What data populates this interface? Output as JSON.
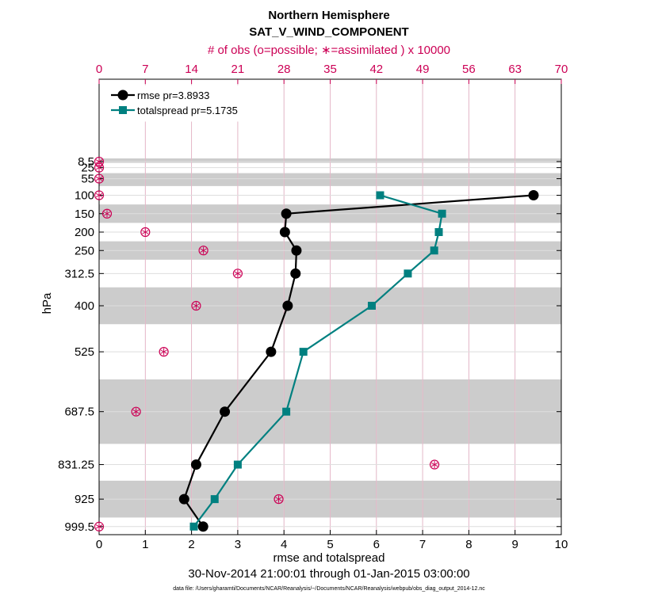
{
  "chart_data": {
    "type": "line",
    "title": "Northern Hemisphere",
    "subtitle": "SAT_V_WIND_COMPONENT",
    "top_axis_label": "# of obs (o=possible; ∗=assimilated ) x 10000",
    "xlabel": "rmse and totalspread",
    "ylabel": "hPa",
    "date_range": "30-Nov-2014 21:00:01 through 01-Jan-2015 03:00:00",
    "footnote": "data file: /Users/gharamti/Documents/NCAR/Reanalysis/~/Documents/NCAR/Reanalysis/webpub/obs_diag_output_2014-12.nc",
    "xlim": [
      0,
      10
    ],
    "x_ticks": [
      0,
      1,
      2,
      3,
      4,
      5,
      6,
      7,
      8,
      9,
      10
    ],
    "top_xlim": [
      0,
      70
    ],
    "top_ticks": [
      0,
      7,
      14,
      21,
      28,
      35,
      42,
      49,
      56,
      63,
      70
    ],
    "levels": [
      8.5,
      25,
      55,
      100,
      150,
      200,
      250,
      312.5,
      400,
      525,
      687.5,
      831.25,
      925,
      999.5
    ],
    "level_labels": [
      "8.5",
      "25",
      "55",
      "100",
      "150",
      "200",
      "250",
      "312.5",
      "400",
      "525",
      "687.5",
      "831.25",
      "925",
      "999.5"
    ],
    "bands_hpa": [
      [
        0,
        12
      ],
      [
        40,
        75
      ],
      [
        125,
        175
      ],
      [
        225,
        275
      ],
      [
        350,
        450
      ],
      [
        600,
        775
      ],
      [
        875,
        975
      ]
    ],
    "legend_position": "top-left",
    "series": [
      {
        "name": "rmse pr=3.8933",
        "color": "#000000",
        "marker": "circle",
        "points": [
          {
            "level": 100,
            "value": 9.4
          },
          {
            "level": 150,
            "value": 4.05
          },
          {
            "level": 200,
            "value": 4.02
          },
          {
            "level": 250,
            "value": 4.27
          },
          {
            "level": 312.5,
            "value": 4.25
          },
          {
            "level": 400,
            "value": 4.08
          },
          {
            "level": 525,
            "value": 3.72
          },
          {
            "level": 687.5,
            "value": 2.72
          },
          {
            "level": 831.25,
            "value": 2.1
          },
          {
            "level": 925,
            "value": 1.84
          },
          {
            "level": 999.5,
            "value": 2.25
          }
        ]
      },
      {
        "name": "totalspread pr=5.1735",
        "color": "#008080",
        "marker": "square",
        "points": [
          {
            "level": 100,
            "value": 6.08
          },
          {
            "level": 150,
            "value": 7.42
          },
          {
            "level": 200,
            "value": 7.35
          },
          {
            "level": 250,
            "value": 7.25
          },
          {
            "level": 312.5,
            "value": 6.68
          },
          {
            "level": 400,
            "value": 5.9
          },
          {
            "level": 525,
            "value": 4.42
          },
          {
            "level": 687.5,
            "value": 4.05
          },
          {
            "level": 831.25,
            "value": 3.0
          },
          {
            "level": 925,
            "value": 2.5
          },
          {
            "level": 999.5,
            "value": 2.05
          }
        ]
      }
    ],
    "obs_markers": {
      "color": "#cc0055",
      "points": [
        {
          "level": 8.5,
          "count": 0
        },
        {
          "level": 25,
          "count": 0
        },
        {
          "level": 55,
          "count": 0
        },
        {
          "level": 100,
          "count": 0
        },
        {
          "level": 150,
          "count": 1.2
        },
        {
          "level": 200,
          "count": 7
        },
        {
          "level": 250,
          "count": 15.8
        },
        {
          "level": 312.5,
          "count": 21
        },
        {
          "level": 400,
          "count": 14.7
        },
        {
          "level": 525,
          "count": 9.8
        },
        {
          "level": 687.5,
          "count": 5.6
        },
        {
          "level": 831.25,
          "count": 50.8
        },
        {
          "level": 925,
          "count": 27.2
        },
        {
          "level": 999.5,
          "count": 0
        }
      ]
    }
  }
}
